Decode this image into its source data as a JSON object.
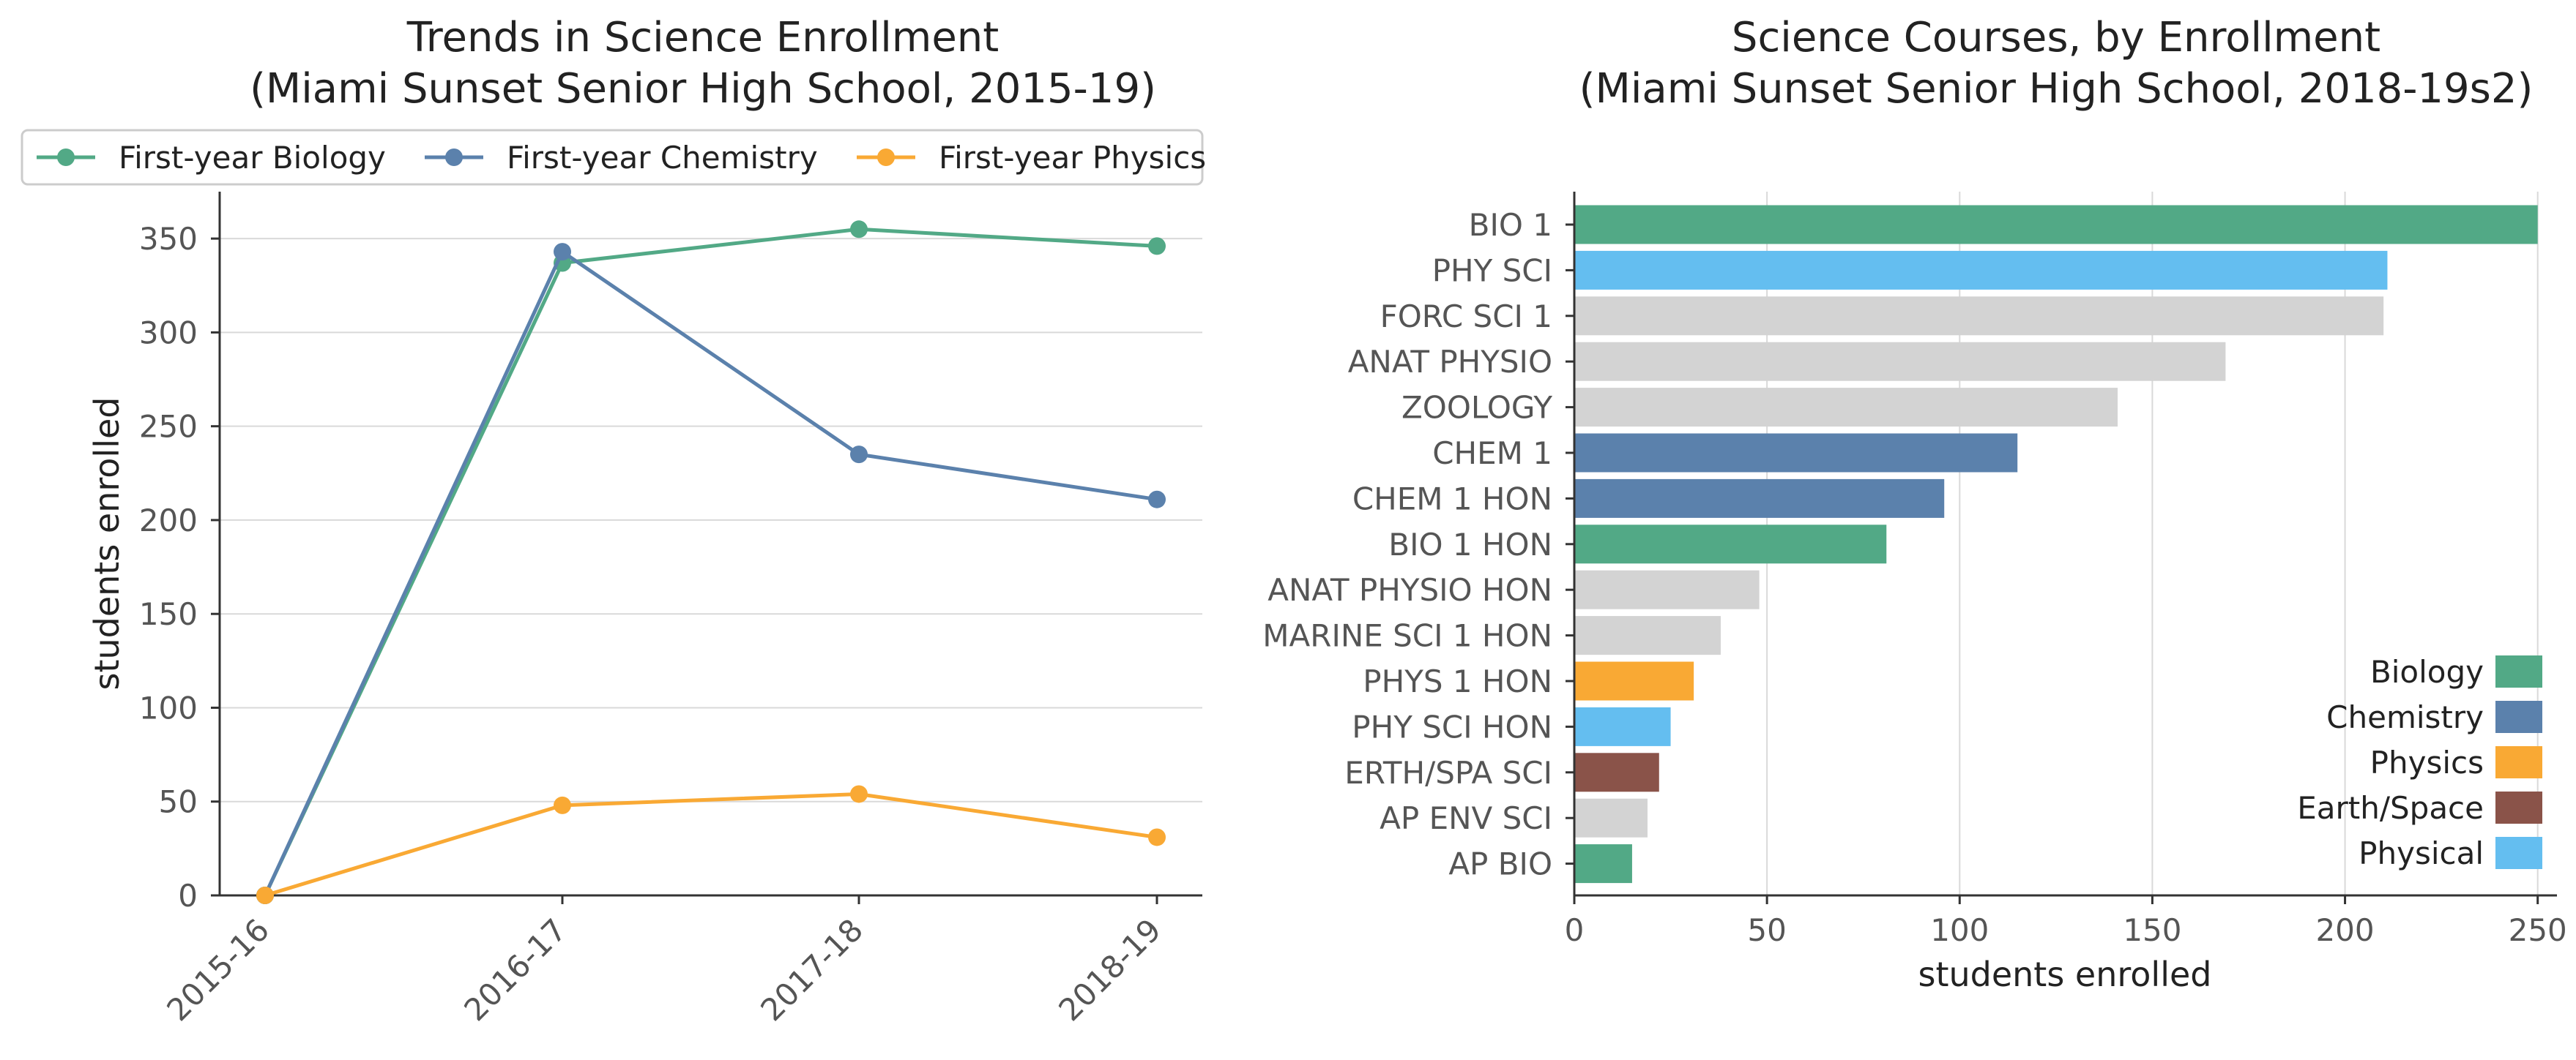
{
  "chart_data": [
    {
      "type": "line",
      "title_line1": "Trends in Science Enrollment",
      "title_line2": "(Miami Sunset Senior High School, 2015-19)",
      "xlabel": "",
      "ylabel": "students enrolled",
      "categories": [
        "2015-16",
        "2016-17",
        "2017-18",
        "2018-19"
      ],
      "ylim": [
        0,
        375
      ],
      "yticks": [
        0,
        50,
        100,
        150,
        200,
        250,
        300,
        350
      ],
      "grid": "horizontal",
      "legend_placement": "top",
      "series": [
        {
          "name": "First-year Biology",
          "color": "#52a986",
          "values": [
            0,
            337,
            355,
            346
          ]
        },
        {
          "name": "First-year Chemistry",
          "color": "#5b81ac",
          "values": [
            0,
            343,
            235,
            211
          ]
        },
        {
          "name": "First-year Physics",
          "color": "#f9a934",
          "values": [
            0,
            48,
            54,
            31
          ]
        }
      ]
    },
    {
      "type": "bar",
      "orientation": "horizontal",
      "title_line1": "Science Courses, by Enrollment",
      "title_line2": "(Miami Sunset Senior High School, 2018-19s2)",
      "xlabel": "students enrolled",
      "ylabel": "",
      "xlim": [
        0,
        255
      ],
      "xticks": [
        0,
        50,
        100,
        150,
        200,
        250
      ],
      "grid": "vertical",
      "legend_placement": "bottom-right",
      "categories": [
        "BIO 1",
        "PHY SCI",
        "FORC SCI 1",
        "ANAT PHYSIO",
        "ZOOLOGY",
        "CHEM 1",
        "CHEM 1 HON",
        "BIO 1 HON",
        "ANAT PHYSIO HON",
        "MARINE SCI 1 HON",
        "PHYS 1 HON",
        "PHY SCI HON",
        "ERTH/SPA SCI",
        "AP ENV SCI",
        "AP BIO"
      ],
      "values": [
        250,
        211,
        210,
        169,
        141,
        115,
        96,
        81,
        48,
        38,
        31,
        25,
        22,
        19,
        15
      ],
      "bar_colors": [
        "#52a986",
        "#64bef0",
        "#d3d3d3",
        "#d3d3d3",
        "#d3d3d3",
        "#5b81ac",
        "#5b81ac",
        "#52a986",
        "#d3d3d3",
        "#d3d3d3",
        "#f9a934",
        "#64bef0",
        "#8a5349",
        "#d3d3d3",
        "#52a986"
      ],
      "legend": [
        {
          "name": "Biology",
          "color": "#52a986"
        },
        {
          "name": "Chemistry",
          "color": "#5b81ac"
        },
        {
          "name": "Physics",
          "color": "#f9a934"
        },
        {
          "name": "Earth/Space",
          "color": "#8a5349"
        },
        {
          "name": "Physical",
          "color": "#64bef0"
        }
      ]
    }
  ]
}
